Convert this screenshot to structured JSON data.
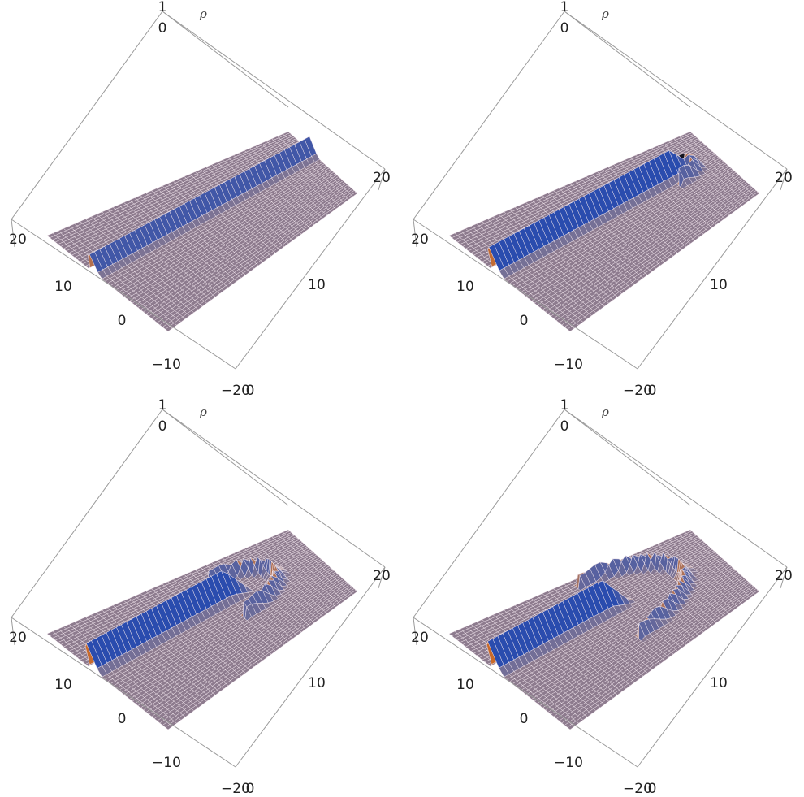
{
  "chart_data": [
    {
      "type": "surface3d",
      "zlabel": "ρ",
      "z_ticks": [
        "1",
        "0"
      ],
      "x_ticks": [
        "20",
        "10",
        "0",
        "-10",
        "-20"
      ],
      "y_ticks": [
        "20",
        "10",
        "0"
      ],
      "x_range": [
        -20,
        20
      ],
      "y_range": [
        0,
        20
      ],
      "z_range": [
        0,
        1
      ],
      "features": {
        "ridge": true,
        "ridge_length": 1.0,
        "ridge_amplitude": 0.55,
        "arc": false,
        "arc_radius": 0,
        "debris": 0.0
      }
    },
    {
      "type": "surface3d",
      "zlabel": "ρ",
      "z_ticks": [
        "1",
        "0"
      ],
      "x_ticks": [
        "20",
        "10",
        "0",
        "-10",
        "-20"
      ],
      "y_ticks": [
        "20",
        "10",
        "0"
      ],
      "x_range": [
        -20,
        20
      ],
      "y_range": [
        0,
        20
      ],
      "z_range": [
        0,
        1
      ],
      "features": {
        "ridge": true,
        "ridge_length": 0.82,
        "ridge_amplitude": 0.75,
        "arc": true,
        "arc_radius": 0.08,
        "debris": 0.6
      }
    },
    {
      "type": "surface3d",
      "zlabel": "ρ",
      "z_ticks": [
        "1",
        "0"
      ],
      "x_ticks": [
        "20",
        "10",
        "0",
        "-10",
        "-20"
      ],
      "y_ticks": [
        "20",
        "10",
        "0"
      ],
      "x_range": [
        -20,
        20
      ],
      "y_range": [
        0,
        20
      ],
      "z_range": [
        0,
        1
      ],
      "features": {
        "ridge": true,
        "ridge_length": 0.62,
        "ridge_amplitude": 0.8,
        "arc": true,
        "arc_radius": 0.2,
        "debris": 0.7
      }
    },
    {
      "type": "surface3d",
      "zlabel": "ρ",
      "z_ticks": [
        "1",
        "0"
      ],
      "x_ticks": [
        "20",
        "10",
        "0",
        "-10",
        "-20"
      ],
      "y_ticks": [
        "20",
        "10",
        "0"
      ],
      "x_range": [
        -20,
        20
      ],
      "y_range": [
        0,
        20
      ],
      "z_range": [
        0,
        1
      ],
      "features": {
        "ridge": true,
        "ridge_length": 0.52,
        "ridge_amplitude": 0.85,
        "arc": true,
        "arc_radius": 0.32,
        "debris": 0.75
      }
    }
  ],
  "colors": {
    "surface": "#8d7b8e",
    "grid": "#f2e6ee",
    "ridge_blue": "#2a4cae",
    "ridge_orange": "#c96a2a",
    "box": "#9a9a9a"
  }
}
